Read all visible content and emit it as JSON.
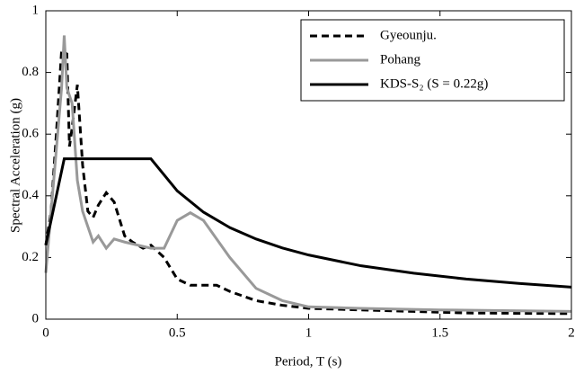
{
  "chart_data": {
    "type": "line",
    "xlabel": "Period, T (s)",
    "ylabel": "Spectral Acceleration (g)",
    "xlim": [
      0,
      2
    ],
    "xticks": [
      0,
      0.5,
      1,
      1.5,
      2
    ],
    "ylim": [
      0,
      1
    ],
    "yticks": [
      0,
      0.2,
      0.4,
      0.6,
      0.8,
      1
    ],
    "legend": "upper right",
    "series": [
      {
        "name": "Gyeounju.",
        "color": "#000000",
        "style": "dashed",
        "x": [
          0,
          0.02,
          0.04,
          0.06,
          0.08,
          0.09,
          0.1,
          0.12,
          0.14,
          0.16,
          0.18,
          0.2,
          0.23,
          0.26,
          0.3,
          0.33,
          0.37,
          0.4,
          0.45,
          0.5,
          0.55,
          0.6,
          0.65,
          0.7,
          0.8,
          0.9,
          1,
          1.2,
          1.4,
          1.6,
          2
        ],
        "values": [
          0.24,
          0.35,
          0.6,
          0.87,
          0.86,
          0.56,
          0.62,
          0.76,
          0.5,
          0.35,
          0.33,
          0.37,
          0.41,
          0.38,
          0.27,
          0.25,
          0.23,
          0.24,
          0.2,
          0.13,
          0.11,
          0.11,
          0.11,
          0.09,
          0.06,
          0.045,
          0.035,
          0.03,
          0.025,
          0.02,
          0.018
        ]
      },
      {
        "name": "Pohang",
        "color": "#999999",
        "style": "solid",
        "x": [
          0,
          0.02,
          0.04,
          0.06,
          0.07,
          0.08,
          0.1,
          0.12,
          0.14,
          0.16,
          0.18,
          0.2,
          0.23,
          0.26,
          0.3,
          0.35,
          0.4,
          0.45,
          0.5,
          0.55,
          0.6,
          0.7,
          0.8,
          0.9,
          1,
          1.2,
          1.5,
          1.7,
          2
        ],
        "values": [
          0.15,
          0.35,
          0.55,
          0.75,
          0.92,
          0.75,
          0.7,
          0.45,
          0.35,
          0.3,
          0.25,
          0.27,
          0.23,
          0.26,
          0.25,
          0.24,
          0.23,
          0.23,
          0.32,
          0.345,
          0.32,
          0.2,
          0.1,
          0.06,
          0.04,
          0.035,
          0.03,
          0.028,
          0.025
        ]
      },
      {
        "name": "KDS-S₂ (S = 0.22g)",
        "color": "#000000",
        "style": "solid",
        "x": [
          0,
          0.07,
          0.4,
          0.5,
          0.6,
          0.7,
          0.8,
          0.9,
          1,
          1.2,
          1.4,
          1.6,
          1.8,
          2
        ],
        "values": [
          0.24,
          0.52,
          0.52,
          0.416,
          0.347,
          0.297,
          0.26,
          0.231,
          0.208,
          0.173,
          0.149,
          0.13,
          0.116,
          0.104
        ]
      }
    ]
  }
}
